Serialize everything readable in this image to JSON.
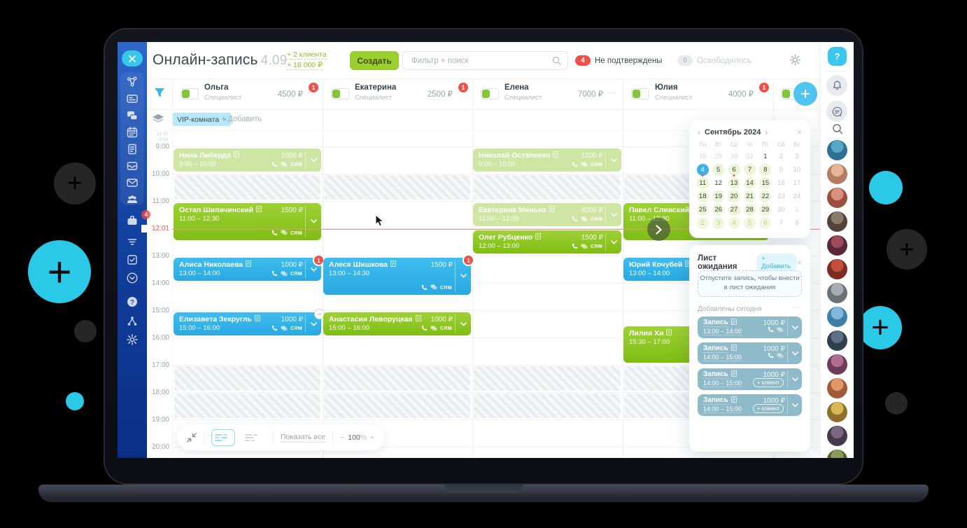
{
  "decor": {
    "plus": "+"
  },
  "header": {
    "title": "Онлайн-запись",
    "version": "4.09",
    "clients_delta": "+ 2 клиента",
    "revenue_delta": "+ 18 000 ₽",
    "create": "Создать",
    "search_placeholder": "Фильтр + поиск",
    "unconfirmed_count": "4",
    "unconfirmed": "Не подтверждены",
    "freed_count": "0",
    "freed": "Освободилось",
    "overflow_dots": "···"
  },
  "sidebar": {
    "close": "×",
    "badge": "4",
    "group_icons": [
      "network",
      "card",
      "chats",
      "calendar",
      "document",
      "drawer",
      "mail",
      "users"
    ],
    "loose_icons": [
      "case",
      "filter",
      "tasks",
      "chevron-circle",
      "help",
      "nodes",
      "gear"
    ]
  },
  "specialists": [
    {
      "name": "Ольга",
      "role": "Специалист",
      "price": "4500 ₽",
      "badge": "1"
    },
    {
      "name": "Екатерина",
      "role": "Специалист",
      "price": "2500 ₽",
      "badge": "1"
    },
    {
      "name": "Елена",
      "role": "Специалист",
      "price": "7000 ₽",
      "badge": ""
    },
    {
      "name": "Юлия",
      "role": "Специалист",
      "price": "4000 ₽",
      "badge": "1"
    }
  ],
  "filters": {
    "tag": "VIP-комната",
    "remove": "×",
    "add": "+ Добавить"
  },
  "schedule": {
    "hours": [
      "9:00",
      "10:00",
      "11:00",
      "13:00",
      "14:00",
      "15:00",
      "16:00",
      "17:00",
      "18:00",
      "19:00",
      "20:00"
    ],
    "collapsed_top": "21:00",
    "collapsed_bottom": "9:00",
    "current_time": "12:01",
    "crm_label": "CRM",
    "appointments": [
      {
        "col": 1,
        "name": "Нина Либерда",
        "start": "9:00",
        "end": "10:00",
        "price": "1000 ₽",
        "style": "pale",
        "crm": true
      },
      {
        "col": 3,
        "name": "Николай Остапенко",
        "start": "9:00",
        "end": "10:00",
        "price": "1500 ₽",
        "style": "pale",
        "crm": true
      },
      {
        "col": 1,
        "name": "Остап Шипачинский",
        "start": "11:00",
        "end": "12:30",
        "price": "1500 ₽",
        "style": "green",
        "crm": true
      },
      {
        "col": 3,
        "name": "Екатерина Минько",
        "start": "11:00",
        "end": "12:00",
        "price": "4000 ₽",
        "style": "pale",
        "crm": true
      },
      {
        "col": 4,
        "name": "Павел Сливский",
        "start": "11:00",
        "end": "12:30",
        "price": "",
        "style": "green",
        "crm": false
      },
      {
        "col": 3,
        "name": "Олег Рубценко",
        "start": "12:00",
        "end": "13:00",
        "price": "1500 ₽",
        "style": "green",
        "crm": true
      },
      {
        "col": 1,
        "name": "Алиса Николаева",
        "start": "13:00",
        "end": "14:00",
        "price": "1000 ₽",
        "style": "blue",
        "badge": "1",
        "crm": true
      },
      {
        "col": 2,
        "name": "Алеся Шишкова",
        "start": "13:00",
        "end": "14:30",
        "price": "1500 ₽",
        "style": "blue",
        "badge": "1",
        "crm": true
      },
      {
        "col": 4,
        "name": "Юрий Кочубей",
        "start": "13:00",
        "end": "14:00",
        "price": "",
        "style": "blue",
        "crm": false
      },
      {
        "col": 1,
        "name": "Елизавета Зекругль",
        "start": "15:00",
        "end": "16:00",
        "price": "1000 ₽",
        "style": "blue",
        "minus": true,
        "crm": true
      },
      {
        "col": 2,
        "name": "Анастасия Леворуцкая",
        "start": "15:00",
        "end": "16:00",
        "price": "1000 ₽",
        "style": "green",
        "crm": true
      },
      {
        "col": 4,
        "name": "Лилия Хи",
        "start": "15:30",
        "end": "17:00",
        "price": "",
        "style": "green",
        "crm": false
      }
    ],
    "blocked": [
      {
        "col": 1,
        "start": "10:00",
        "end": "11:00"
      },
      {
        "col": 2,
        "start": "10:00",
        "end": "11:00"
      },
      {
        "col": 3,
        "start": "10:00",
        "end": "11:00"
      },
      {
        "col": 4,
        "start": "10:00",
        "end": "11:00"
      },
      {
        "col": 1,
        "start": "17:00",
        "end": "18:00"
      },
      {
        "col": 2,
        "start": "17:00",
        "end": "18:00"
      },
      {
        "col": 3,
        "start": "17:00",
        "end": "18:00"
      },
      {
        "col": 4,
        "start": "17:00",
        "end": "18:00"
      },
      {
        "col": 1,
        "start": "18:00",
        "end": "19:00"
      },
      {
        "col": 2,
        "start": "18:00",
        "end": "19:00"
      },
      {
        "col": 3,
        "start": "18:00",
        "end": "19:00"
      },
      {
        "col": 4,
        "start": "18:00",
        "end": "19:00"
      }
    ]
  },
  "calendar": {
    "prev": "‹",
    "next": "›",
    "close": "×",
    "month": "Сентябрь 2024",
    "weekdays": [
      "Пн",
      "Вт",
      "Ср",
      "Чт",
      "Пт",
      "Сб",
      "Вс"
    ],
    "weeks": [
      [
        {
          "n": 28,
          "s": "p"
        },
        {
          "n": 29,
          "s": "p"
        },
        {
          "n": 30,
          "s": "p"
        },
        {
          "n": 31,
          "s": "p"
        },
        {
          "n": 1,
          "s": "b"
        },
        {
          "n": 2,
          "s": "x"
        },
        {
          "n": 3,
          "s": "x"
        }
      ],
      [
        {
          "n": 4,
          "s": "sel",
          "dot": true
        },
        {
          "n": 5,
          "s": "g"
        },
        {
          "n": 6,
          "s": "g",
          "dot": true
        },
        {
          "n": 7,
          "s": "g"
        },
        {
          "n": 8,
          "s": "g"
        },
        {
          "n": 9,
          "s": "x"
        },
        {
          "n": 10,
          "s": "x"
        }
      ],
      [
        {
          "n": 11,
          "s": "g"
        },
        {
          "n": 12,
          "s": "b"
        },
        {
          "n": 13,
          "s": "g"
        },
        {
          "n": 14,
          "s": "g"
        },
        {
          "n": 15,
          "s": "g"
        },
        {
          "n": 16,
          "s": "x"
        },
        {
          "n": 17,
          "s": "x"
        }
      ],
      [
        {
          "n": 18,
          "s": "g"
        },
        {
          "n": 19,
          "s": "g"
        },
        {
          "n": 20,
          "s": "g"
        },
        {
          "n": 21,
          "s": "g"
        },
        {
          "n": 22,
          "s": "g"
        },
        {
          "n": 23,
          "s": "x"
        },
        {
          "n": 24,
          "s": "x"
        }
      ],
      [
        {
          "n": 25,
          "s": "g"
        },
        {
          "n": 26,
          "s": "g"
        },
        {
          "n": 27,
          "s": "g"
        },
        {
          "n": 28,
          "s": "g"
        },
        {
          "n": 29,
          "s": "g"
        },
        {
          "n": 30,
          "s": "x"
        },
        {
          "n": 1,
          "s": "p"
        }
      ],
      [
        {
          "n": 2,
          "s": "gd"
        },
        {
          "n": 3,
          "s": "gd"
        },
        {
          "n": 4,
          "s": "gd"
        },
        {
          "n": 5,
          "s": "gd"
        },
        {
          "n": 6,
          "s": "gd"
        },
        {
          "n": 7,
          "s": "x"
        },
        {
          "n": 8,
          "s": "x"
        }
      ]
    ]
  },
  "waiting": {
    "title": "Лист ожидания",
    "add": "+ Добавить",
    "close": "×",
    "hint": "Отпустите запись, чтобы внести в лист ожидания",
    "group": "Добавлены сегодня",
    "menu_dots": "···",
    "items": [
      {
        "title": "Запись",
        "time": "13:00 – 14:00",
        "price": "1000 ₽",
        "action": "icons"
      },
      {
        "title": "Запись",
        "time": "14:00 – 15:00",
        "price": "1000 ₽",
        "action": "icons"
      },
      {
        "title": "Запись",
        "time": "14:00 – 15:00",
        "price": "1000 ₽",
        "action": "client",
        "client": "+ клиент"
      },
      {
        "title": "Запись",
        "time": "14:00 – 15:00",
        "price": "1000 ₽",
        "action": "client",
        "client": "+ клиент"
      }
    ]
  },
  "toolbar": {
    "show_all": "Показать все",
    "minus": "−",
    "zoom": "100",
    "percent": "%",
    "plus": "+"
  },
  "rail": {
    "help": "?"
  },
  "avatars": [
    [
      "#58a7c9",
      "#2f6f93"
    ],
    [
      "#e6b49a",
      "#b57a60"
    ],
    [
      "#d9907e",
      "#9c4f3e"
    ],
    [
      "#8a7a6c",
      "#51423a"
    ],
    [
      "#9c4a5c",
      "#5a2736"
    ],
    [
      "#c2503c",
      "#7c2d22"
    ],
    [
      "#a7adb3",
      "#6b7177"
    ],
    [
      "#7fb6da",
      "#3f7ea8"
    ],
    [
      "#5d6f80",
      "#2e3f4e"
    ],
    [
      "#b06f90",
      "#6d3b55"
    ],
    [
      "#e09a6a",
      "#a05a35"
    ],
    [
      "#d8b955",
      "#8f6f2a"
    ],
    [
      "#7a6880",
      "#453a4d"
    ],
    [
      "#8b9a5a",
      "#55632f"
    ]
  ],
  "colors": {
    "accent_cyan": "#37c7ea",
    "accent_green": "#9bce2f",
    "badge_red": "#f0504a",
    "card_green": "#8cc41e",
    "card_blue": "#33b2e7",
    "card_pale": "#cfe5a3",
    "card_wait": "#8fbac9"
  }
}
